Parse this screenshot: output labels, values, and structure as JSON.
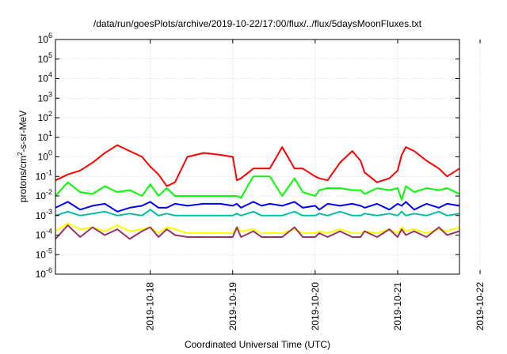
{
  "chart_data": {
    "type": "line",
    "title": "/data/run/goesPlots/archive/2019-10-22/17:00/flux/../flux/5daysMoonFluxes.txt",
    "xlabel": "Coordinated Universal Time (UTC)",
    "ylabel": {
      "base": "protons/cm",
      "sup": "2",
      "rest": "-s-sr-MeV"
    },
    "yscale": "log",
    "ylim_exp": [
      -6,
      6
    ],
    "y_ticks": [
      {
        "exp": -6
      },
      {
        "exp": -5
      },
      {
        "exp": -4
      },
      {
        "exp": -3
      },
      {
        "exp": -2
      },
      {
        "exp": -1
      },
      {
        "exp": 0
      },
      {
        "exp": 1
      },
      {
        "exp": 2
      },
      {
        "exp": 3
      },
      {
        "exp": 4
      },
      {
        "exp": 5
      },
      {
        "exp": 6
      }
    ],
    "xlim_days": [
      -1.15,
      3.75
    ],
    "x_ticks": [
      {
        "label": "2019-10-18",
        "day": 0
      },
      {
        "label": "2019-10-19",
        "day": 1
      },
      {
        "label": "2019-10-20",
        "day": 2
      },
      {
        "label": "2019-10-21",
        "day": 3
      },
      {
        "label": "2019-10-22",
        "day": 4
      }
    ],
    "grid": true,
    "legend": "none",
    "series": [
      {
        "color": "#ff0000",
        "x": [
          -1.15,
          -1.0,
          -0.85,
          -0.7,
          -0.55,
          -0.4,
          -0.25,
          -0.1,
          0.0,
          0.1,
          0.2,
          0.3,
          0.45,
          0.65,
          0.85,
          1.0,
          1.05,
          1.1,
          1.25,
          1.35,
          1.45,
          1.6,
          1.75,
          1.85,
          2.0,
          2.05,
          2.15,
          2.3,
          2.45,
          2.55,
          2.6,
          2.75,
          2.9,
          3.0,
          3.05,
          3.1,
          3.2,
          3.35,
          3.5,
          3.6,
          3.75
        ],
        "y_exp": [
          -1.2,
          -0.9,
          -0.7,
          -0.3,
          0.2,
          0.6,
          0.3,
          0.0,
          -0.5,
          -0.9,
          -1.5,
          -1.3,
          0.0,
          0.2,
          0.1,
          0.0,
          -1.2,
          -1.1,
          -0.6,
          -0.6,
          -0.6,
          0.5,
          -0.6,
          -0.6,
          -1.0,
          -1.1,
          -1.2,
          -0.3,
          0.3,
          -0.2,
          -0.8,
          -1.3,
          -1.1,
          -0.7,
          0.1,
          0.5,
          0.3,
          -0.2,
          -0.6,
          -1.0,
          -0.6
        ]
      },
      {
        "color": "#00ff00",
        "x": [
          -1.15,
          -1.0,
          -0.85,
          -0.7,
          -0.55,
          -0.4,
          -0.25,
          -0.1,
          0.0,
          0.1,
          0.2,
          0.3,
          0.45,
          0.65,
          0.85,
          1.0,
          1.05,
          1.1,
          1.25,
          1.35,
          1.45,
          1.6,
          1.75,
          1.85,
          2.0,
          2.05,
          2.15,
          2.3,
          2.45,
          2.55,
          2.6,
          2.75,
          2.9,
          3.0,
          3.05,
          3.1,
          3.2,
          3.35,
          3.5,
          3.6,
          3.75
        ],
        "y_exp": [
          -2.0,
          -1.3,
          -1.8,
          -1.9,
          -1.5,
          -1.8,
          -1.7,
          -2.0,
          -1.4,
          -2.0,
          -1.6,
          -2.0,
          -2.0,
          -2.0,
          -2.0,
          -2.0,
          -2.0,
          -2.1,
          -1.0,
          -1.0,
          -1.0,
          -2.0,
          -1.1,
          -1.8,
          -2.0,
          -1.7,
          -1.6,
          -1.6,
          -1.7,
          -1.7,
          -1.9,
          -1.6,
          -1.7,
          -1.6,
          -2.2,
          -1.5,
          -1.8,
          -1.6,
          -1.7,
          -1.6,
          -1.9
        ]
      },
      {
        "color": "#0000ff",
        "x": [
          -1.15,
          -1.0,
          -0.85,
          -0.7,
          -0.55,
          -0.4,
          -0.25,
          -0.1,
          0.0,
          0.1,
          0.2,
          0.3,
          0.45,
          0.65,
          0.85,
          1.0,
          1.05,
          1.1,
          1.25,
          1.35,
          1.45,
          1.6,
          1.75,
          1.85,
          2.0,
          2.05,
          2.15,
          2.3,
          2.45,
          2.55,
          2.6,
          2.75,
          2.9,
          3.0,
          3.05,
          3.1,
          3.2,
          3.35,
          3.5,
          3.6,
          3.75
        ],
        "y_exp": [
          -2.6,
          -2.3,
          -2.7,
          -2.5,
          -2.4,
          -2.8,
          -2.6,
          -2.5,
          -2.3,
          -2.6,
          -2.6,
          -2.4,
          -2.5,
          -2.4,
          -2.4,
          -2.5,
          -2.4,
          -2.6,
          -2.3,
          -2.5,
          -2.4,
          -2.5,
          -2.3,
          -2.6,
          -2.5,
          -2.7,
          -2.4,
          -2.5,
          -2.4,
          -2.5,
          -2.6,
          -2.4,
          -2.7,
          -2.4,
          -2.5,
          -2.3,
          -2.7,
          -2.4,
          -2.6,
          -2.4,
          -2.5
        ]
      },
      {
        "color": "#00c0a0",
        "x": [
          -1.15,
          -1.0,
          -0.85,
          -0.7,
          -0.55,
          -0.4,
          -0.25,
          -0.1,
          0.0,
          0.1,
          0.2,
          0.3,
          0.45,
          0.65,
          0.85,
          1.0,
          1.05,
          1.1,
          1.25,
          1.35,
          1.45,
          1.6,
          1.75,
          1.85,
          2.0,
          2.05,
          2.15,
          2.3,
          2.45,
          2.55,
          2.6,
          2.75,
          2.9,
          3.0,
          3.05,
          3.1,
          3.2,
          3.35,
          3.5,
          3.6,
          3.75
        ],
        "y_exp": [
          -3.0,
          -2.8,
          -3.0,
          -2.9,
          -2.8,
          -3.0,
          -2.9,
          -3.0,
          -2.7,
          -3.0,
          -2.9,
          -3.0,
          -3.0,
          -3.0,
          -3.0,
          -3.0,
          -2.9,
          -3.0,
          -2.8,
          -3.0,
          -3.0,
          -3.0,
          -2.8,
          -3.0,
          -3.0,
          -2.9,
          -3.0,
          -2.8,
          -3.0,
          -3.0,
          -2.9,
          -3.0,
          -2.9,
          -3.0,
          -2.8,
          -3.0,
          -2.9,
          -3.0,
          -2.8,
          -3.0,
          -2.9
        ]
      },
      {
        "color": "#ffff00",
        "x": [
          -1.15,
          -1.0,
          -0.85,
          -0.7,
          -0.55,
          -0.4,
          -0.25,
          -0.1,
          0.0,
          0.1,
          0.2,
          0.3,
          0.45,
          0.65,
          0.85,
          1.0,
          1.05,
          1.1,
          1.25,
          1.35,
          1.45,
          1.6,
          1.75,
          1.85,
          2.0,
          2.05,
          2.15,
          2.3,
          2.45,
          2.55,
          2.6,
          2.75,
          2.9,
          3.0,
          3.05,
          3.1,
          3.2,
          3.35,
          3.5,
          3.6,
          3.75
        ],
        "y_exp": [
          -3.8,
          -3.4,
          -3.7,
          -3.6,
          -3.8,
          -3.5,
          -3.8,
          -3.7,
          -3.6,
          -3.9,
          -3.6,
          -3.7,
          -3.9,
          -3.9,
          -3.9,
          -3.9,
          -3.6,
          -3.8,
          -3.7,
          -3.9,
          -3.9,
          -3.9,
          -3.7,
          -3.9,
          -3.9,
          -3.8,
          -3.9,
          -3.7,
          -3.9,
          -3.9,
          -3.8,
          -3.9,
          -3.7,
          -3.9,
          -3.6,
          -3.8,
          -3.7,
          -3.9,
          -3.7,
          -3.8,
          -3.6
        ]
      },
      {
        "color": "#993366",
        "x": [
          -1.15,
          -1.0,
          -0.85,
          -0.7,
          -0.55,
          -0.4,
          -0.25,
          -0.1,
          0.0,
          0.1,
          0.2,
          0.3,
          0.45,
          0.65,
          0.85,
          1.0,
          1.05,
          1.1,
          1.25,
          1.35,
          1.45,
          1.6,
          1.75,
          1.85,
          2.0,
          2.05,
          2.15,
          2.3,
          2.45,
          2.55,
          2.6,
          2.75,
          2.9,
          3.0,
          3.05,
          3.1,
          3.2,
          3.35,
          3.5,
          3.6,
          3.75
        ],
        "y_exp": [
          -4.2,
          -3.5,
          -4.1,
          -3.6,
          -4.0,
          -3.7,
          -4.2,
          -3.8,
          -3.6,
          -4.1,
          -3.7,
          -4.0,
          -4.1,
          -4.1,
          -4.1,
          -4.1,
          -3.6,
          -4.1,
          -3.8,
          -4.1,
          -4.1,
          -4.1,
          -3.6,
          -4.1,
          -4.1,
          -3.9,
          -4.1,
          -3.8,
          -4.1,
          -4.1,
          -3.8,
          -4.1,
          -3.7,
          -4.1,
          -3.7,
          -4.0,
          -3.8,
          -4.1,
          -3.6,
          -4.0,
          -3.8
        ]
      }
    ]
  }
}
